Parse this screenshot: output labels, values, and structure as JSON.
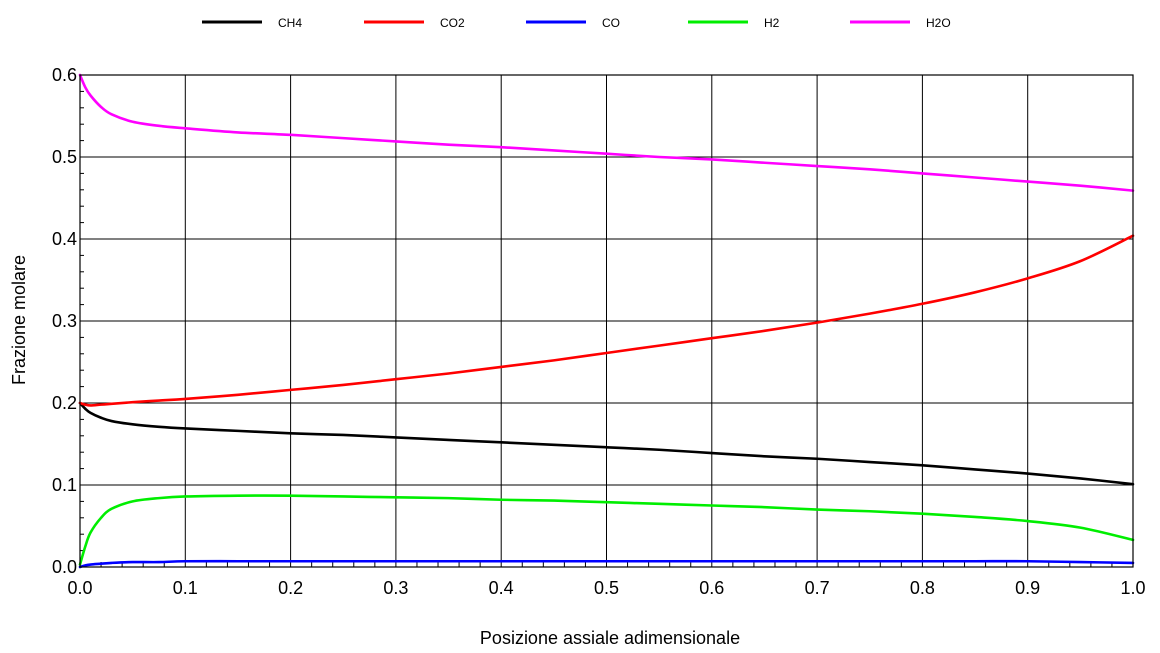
{
  "chart_data": {
    "type": "line",
    "title": "",
    "xlabel": "Posizione assiale adimensionale",
    "ylabel": "Frazione molare",
    "xlim": [
      0.0,
      1.0
    ],
    "ylim": [
      0.0,
      0.6
    ],
    "xticks": [
      "0.0",
      "0.1",
      "0.2",
      "0.3",
      "0.4",
      "0.5",
      "0.6",
      "0.7",
      "0.8",
      "0.9",
      "1.0"
    ],
    "yticks": [
      "0.0",
      "0.1",
      "0.2",
      "0.3",
      "0.4",
      "0.5",
      "0.6"
    ],
    "grid": true,
    "legend_position": "top",
    "x": [
      0.0,
      0.005,
      0.01,
      0.02,
      0.03,
      0.05,
      0.075,
      0.1,
      0.15,
      0.2,
      0.25,
      0.3,
      0.35,
      0.4,
      0.45,
      0.5,
      0.55,
      0.6,
      0.65,
      0.7,
      0.75,
      0.8,
      0.85,
      0.9,
      0.95,
      1.0
    ],
    "series": [
      {
        "name": "CH4",
        "color": "#000000",
        "values": [
          0.2,
          0.193,
          0.188,
          0.182,
          0.178,
          0.174,
          0.171,
          0.169,
          0.166,
          0.163,
          0.161,
          0.158,
          0.155,
          0.152,
          0.149,
          0.146,
          0.143,
          0.139,
          0.135,
          0.132,
          0.128,
          0.124,
          0.119,
          0.114,
          0.108,
          0.101
        ]
      },
      {
        "name": "CO2",
        "color": "#ff0000",
        "values": [
          0.2,
          0.198,
          0.197,
          0.198,
          0.199,
          0.201,
          0.203,
          0.205,
          0.21,
          0.216,
          0.222,
          0.229,
          0.236,
          0.244,
          0.252,
          0.261,
          0.27,
          0.279,
          0.288,
          0.298,
          0.309,
          0.321,
          0.335,
          0.352,
          0.373,
          0.404
        ]
      },
      {
        "name": "CO",
        "color": "#0000ff",
        "values": [
          0.0,
          0.002,
          0.003,
          0.004,
          0.005,
          0.006,
          0.006,
          0.007,
          0.007,
          0.007,
          0.007,
          0.007,
          0.007,
          0.007,
          0.007,
          0.007,
          0.007,
          0.007,
          0.007,
          0.007,
          0.007,
          0.007,
          0.007,
          0.007,
          0.006,
          0.005
        ]
      },
      {
        "name": "H2",
        "color": "#00ee00",
        "values": [
          0.003,
          0.025,
          0.042,
          0.06,
          0.071,
          0.08,
          0.084,
          0.086,
          0.087,
          0.087,
          0.086,
          0.085,
          0.084,
          0.082,
          0.081,
          0.079,
          0.077,
          0.075,
          0.073,
          0.07,
          0.068,
          0.065,
          0.061,
          0.056,
          0.048,
          0.033
        ]
      },
      {
        "name": "H2O",
        "color": "#ff00ff",
        "values": [
          0.6,
          0.585,
          0.575,
          0.561,
          0.552,
          0.543,
          0.538,
          0.535,
          0.53,
          0.527,
          0.523,
          0.519,
          0.515,
          0.512,
          0.508,
          0.504,
          0.5,
          0.497,
          0.493,
          0.489,
          0.485,
          0.48,
          0.475,
          0.47,
          0.465,
          0.459
        ]
      }
    ]
  }
}
